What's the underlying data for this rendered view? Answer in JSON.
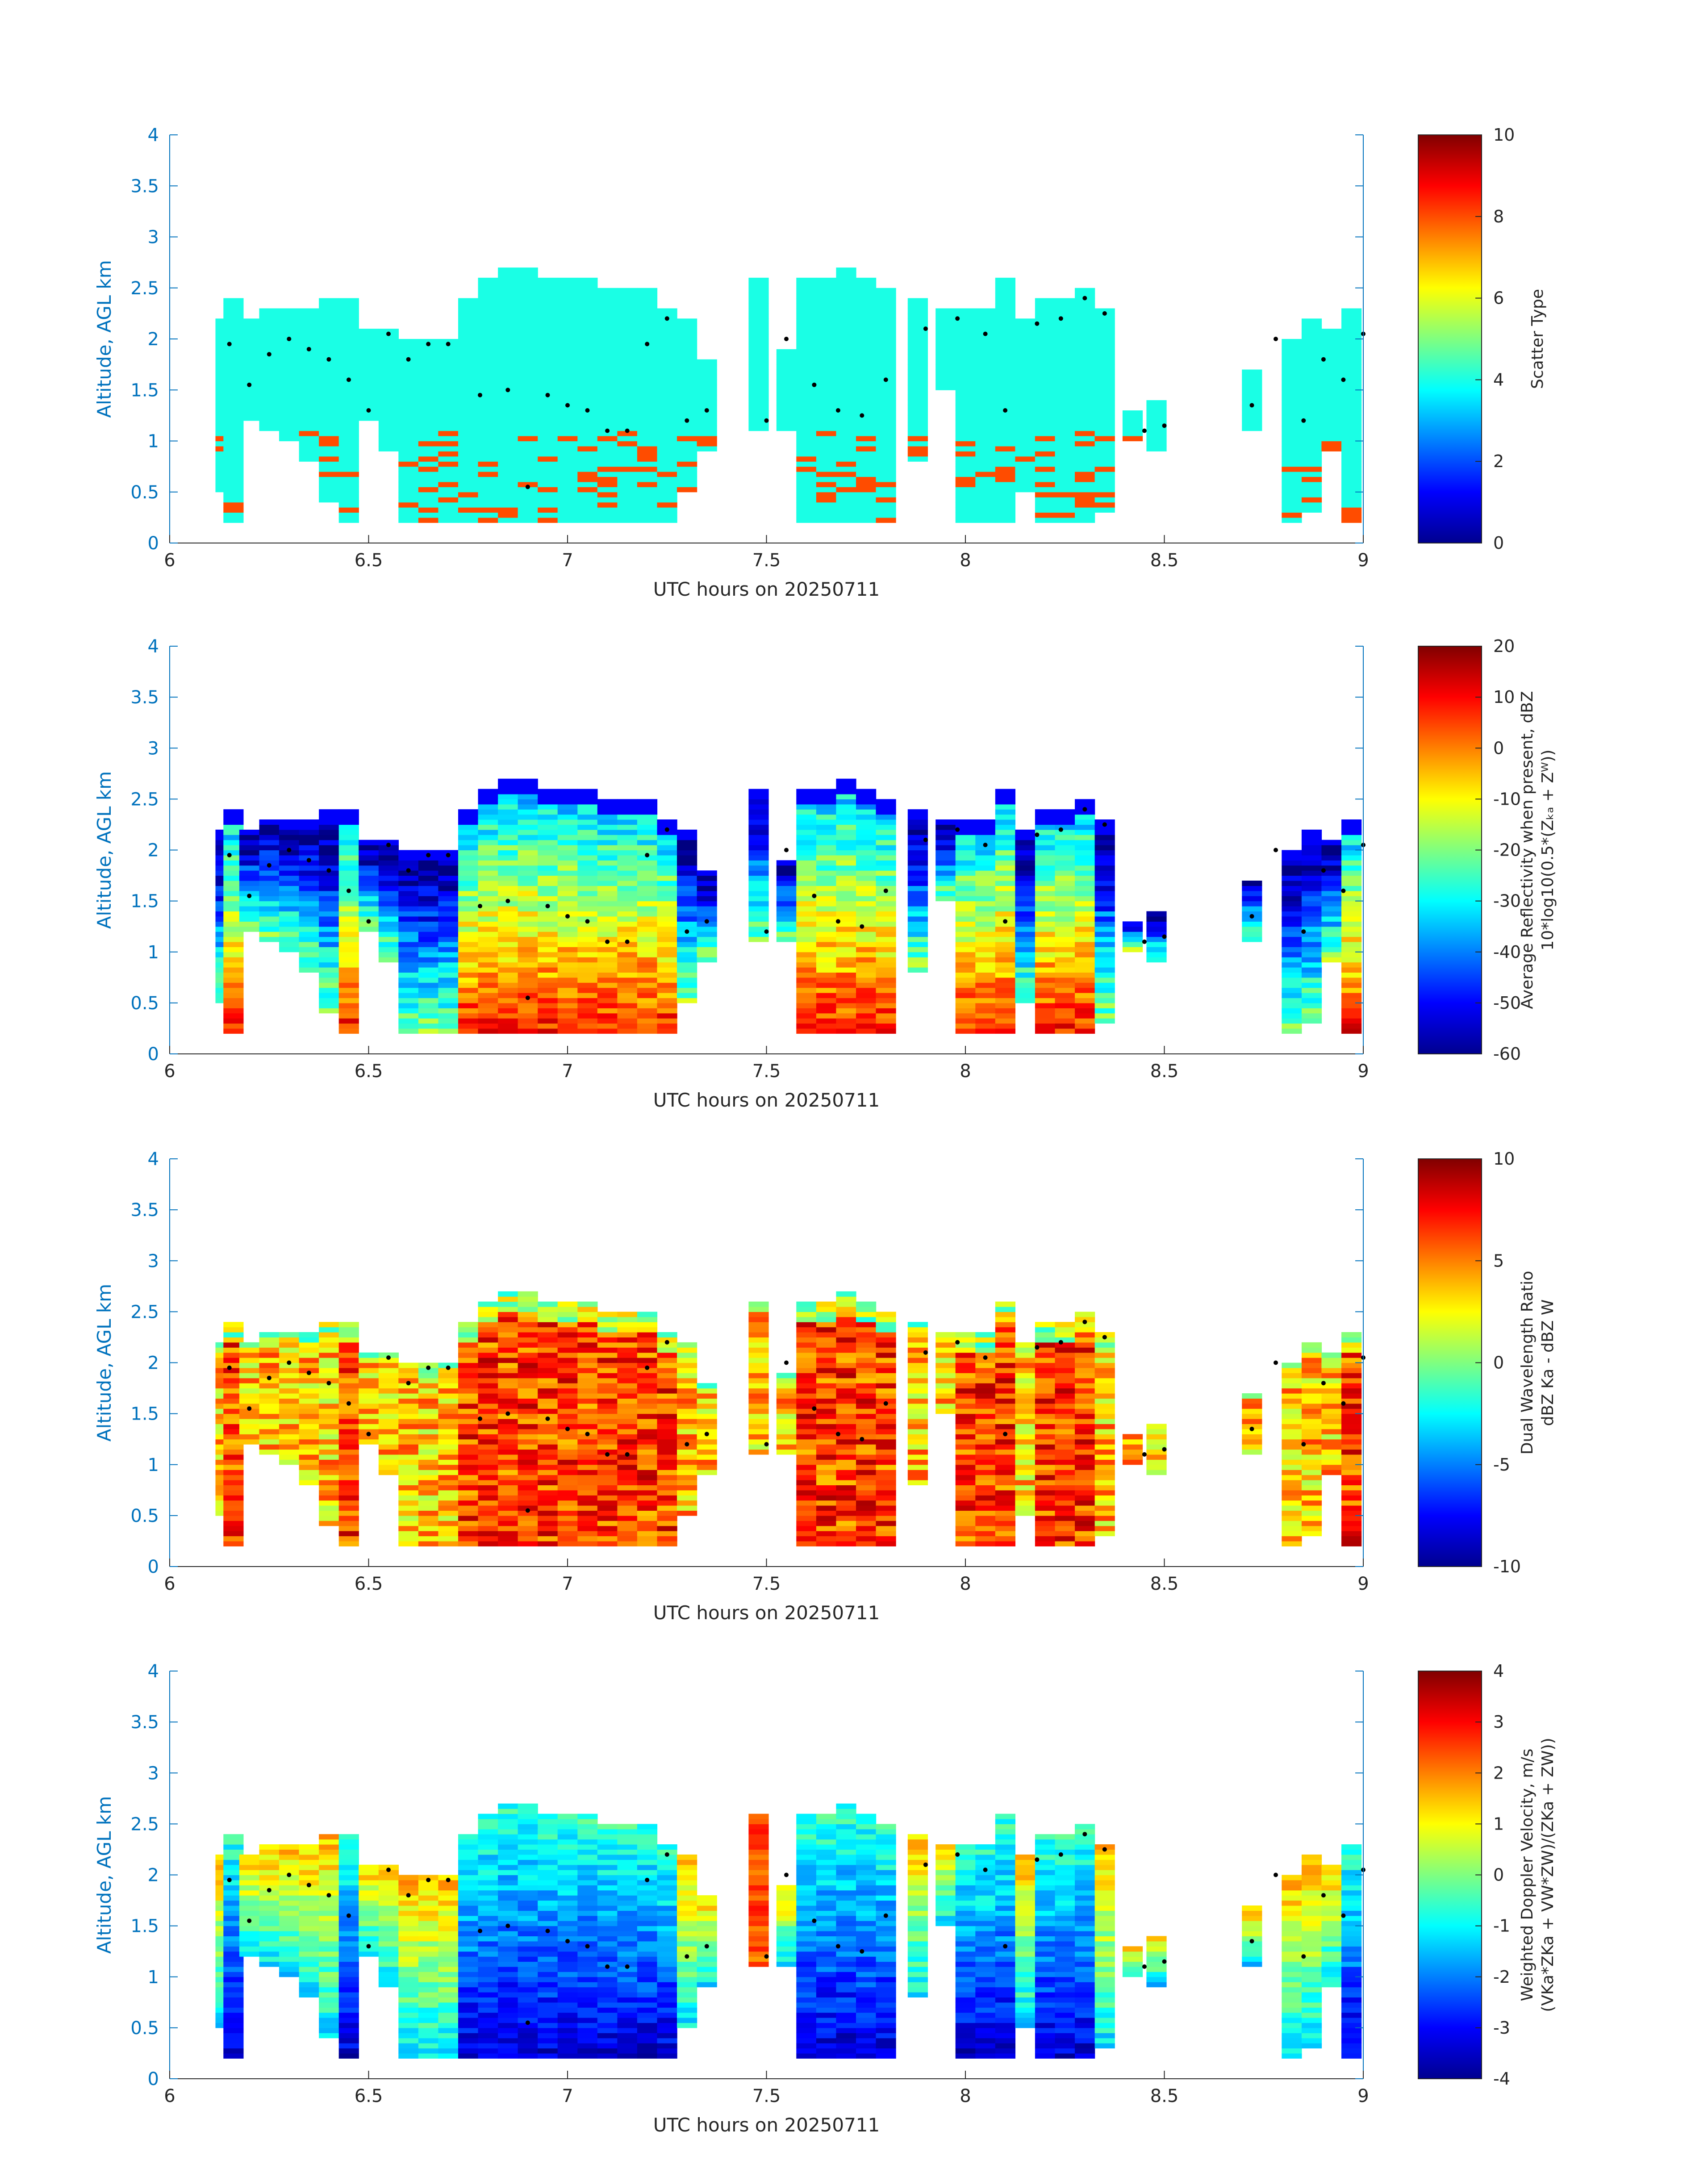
{
  "chart_data": [
    {
      "type": "heatmap",
      "xlabel": "UTC hours on 20250711",
      "ylabel": "Altitude, AGL km",
      "xlim": [
        6,
        9
      ],
      "ylim": [
        0,
        4
      ],
      "xticks": [
        "6",
        "6.5",
        "7",
        "7.5",
        "8",
        "8.5",
        "9"
      ],
      "yticks": [
        "0",
        "0.5",
        "1",
        "1.5",
        "2",
        "2.5",
        "3",
        "3.5",
        "4"
      ],
      "colorbar": {
        "label_lines": [
          "Scatter Type"
        ],
        "range": [
          0,
          10
        ],
        "ticks": [
          "0",
          "2",
          "4",
          "6",
          "8",
          "10"
        ]
      },
      "field": "scatter"
    },
    {
      "type": "heatmap",
      "xlabel": "UTC hours on 20250711",
      "ylabel": "Altitude, AGL km",
      "xlim": [
        6,
        9
      ],
      "ylim": [
        0,
        4
      ],
      "xticks": [
        "6",
        "6.5",
        "7",
        "7.5",
        "8",
        "8.5",
        "9"
      ],
      "yticks": [
        "0",
        "0.5",
        "1",
        "1.5",
        "2",
        "2.5",
        "3",
        "3.5",
        "4"
      ],
      "colorbar": {
        "label_lines": [
          "Average Reflectivity when present, dBZ",
          "10*log10(0.5*(Zₖₐ + Zᵂ))"
        ],
        "range": [
          -60,
          20
        ],
        "ticks": [
          "-60",
          "-50",
          "-40",
          "-30",
          "-20",
          "-10",
          "0",
          "10",
          "20"
        ]
      },
      "field": "reflectivity"
    },
    {
      "type": "heatmap",
      "xlabel": "UTC hours on 20250711",
      "ylabel": "Altitude, AGL km",
      "xlim": [
        6,
        9
      ],
      "ylim": [
        0,
        4
      ],
      "xticks": [
        "6",
        "6.5",
        "7",
        "7.5",
        "8",
        "8.5",
        "9"
      ],
      "yticks": [
        "0",
        "0.5",
        "1",
        "1.5",
        "2",
        "2.5",
        "3",
        "3.5",
        "4"
      ],
      "colorbar": {
        "label_lines": [
          "Dual Wavelength Ratio",
          "dBZ Ka - dBZ W"
        ],
        "range": [
          -10,
          10
        ],
        "ticks": [
          "-10",
          "-5",
          "0",
          "5",
          "10"
        ]
      },
      "field": "dwr"
    },
    {
      "type": "heatmap",
      "xlabel": "UTC hours on 20250711",
      "ylabel": "Altitude, AGL km",
      "xlim": [
        6,
        9
      ],
      "ylim": [
        0,
        4
      ],
      "xticks": [
        "6",
        "6.5",
        "7",
        "7.5",
        "8",
        "8.5",
        "9"
      ],
      "yticks": [
        "0",
        "0.5",
        "1",
        "1.5",
        "2",
        "2.5",
        "3",
        "3.5",
        "4"
      ],
      "colorbar": {
        "label_lines": [
          "Weighted Doppler Velocity, m/s",
          "(VKa*ZKa + VW*ZW)/(ZKa + ZW))"
        ],
        "range": [
          -4,
          4
        ],
        "ticks": [
          "-4",
          "-3",
          "-2",
          "-1",
          "0",
          "1",
          "2",
          "3",
          "4"
        ]
      },
      "field": "velocity"
    }
  ],
  "cloud_columns": [
    {
      "t": 6.14,
      "bottom": 0.5,
      "top": 2.2
    },
    {
      "t": 6.16,
      "bottom": 0.2,
      "top": 2.4
    },
    {
      "t": 6.2,
      "bottom": 1.2,
      "top": 2.2
    },
    {
      "t": 6.25,
      "bottom": 1.1,
      "top": 2.3
    },
    {
      "t": 6.3,
      "bottom": 1.0,
      "top": 2.3
    },
    {
      "t": 6.35,
      "bottom": 0.8,
      "top": 2.3
    },
    {
      "t": 6.4,
      "bottom": 0.4,
      "top": 2.4
    },
    {
      "t": 6.45,
      "bottom": 0.2,
      "top": 2.4
    },
    {
      "t": 6.5,
      "bottom": 1.2,
      "top": 2.1
    },
    {
      "t": 6.55,
      "bottom": 0.9,
      "top": 2.1
    },
    {
      "t": 6.6,
      "bottom": 0.2,
      "top": 2.0
    },
    {
      "t": 6.65,
      "bottom": 0.2,
      "top": 2.0
    },
    {
      "t": 6.7,
      "bottom": 0.2,
      "top": 2.0
    },
    {
      "t": 6.75,
      "bottom": 0.2,
      "top": 2.4
    },
    {
      "t": 6.8,
      "bottom": 0.2,
      "top": 2.6
    },
    {
      "t": 6.85,
      "bottom": 0.2,
      "top": 2.7
    },
    {
      "t": 6.9,
      "bottom": 0.2,
      "top": 2.7
    },
    {
      "t": 6.95,
      "bottom": 0.2,
      "top": 2.6
    },
    {
      "t": 7.0,
      "bottom": 0.2,
      "top": 2.6
    },
    {
      "t": 7.05,
      "bottom": 0.2,
      "top": 2.6
    },
    {
      "t": 7.1,
      "bottom": 0.2,
      "top": 2.5
    },
    {
      "t": 7.15,
      "bottom": 0.2,
      "top": 2.5
    },
    {
      "t": 7.2,
      "bottom": 0.2,
      "top": 2.5
    },
    {
      "t": 7.25,
      "bottom": 0.2,
      "top": 2.3
    },
    {
      "t": 7.3,
      "bottom": 0.5,
      "top": 2.2
    },
    {
      "t": 7.35,
      "bottom": 0.9,
      "top": 1.8
    },
    {
      "t": 7.48,
      "bottom": 1.1,
      "top": 2.6
    },
    {
      "t": 7.55,
      "bottom": 1.1,
      "top": 1.9
    },
    {
      "t": 7.6,
      "bottom": 0.2,
      "top": 2.6
    },
    {
      "t": 7.65,
      "bottom": 0.2,
      "top": 2.6
    },
    {
      "t": 7.7,
      "bottom": 0.2,
      "top": 2.7
    },
    {
      "t": 7.75,
      "bottom": 0.2,
      "top": 2.6
    },
    {
      "t": 7.8,
      "bottom": 0.2,
      "top": 2.5
    },
    {
      "t": 7.88,
      "bottom": 0.8,
      "top": 2.4
    },
    {
      "t": 7.95,
      "bottom": 1.5,
      "top": 2.3
    },
    {
      "t": 8.0,
      "bottom": 0.2,
      "top": 2.3
    },
    {
      "t": 8.05,
      "bottom": 0.2,
      "top": 2.3
    },
    {
      "t": 8.1,
      "bottom": 0.2,
      "top": 2.6
    },
    {
      "t": 8.15,
      "bottom": 0.5,
      "top": 2.2
    },
    {
      "t": 8.2,
      "bottom": 0.2,
      "top": 2.4
    },
    {
      "t": 8.25,
      "bottom": 0.2,
      "top": 2.4
    },
    {
      "t": 8.3,
      "bottom": 0.2,
      "top": 2.5
    },
    {
      "t": 8.35,
      "bottom": 0.3,
      "top": 2.3
    },
    {
      "t": 8.42,
      "bottom": 1.0,
      "top": 1.3
    },
    {
      "t": 8.48,
      "bottom": 0.9,
      "top": 1.4
    },
    {
      "t": 8.72,
      "bottom": 1.1,
      "top": 1.7
    },
    {
      "t": 8.82,
      "bottom": 0.2,
      "top": 2.0
    },
    {
      "t": 8.87,
      "bottom": 0.3,
      "top": 2.2
    },
    {
      "t": 8.92,
      "bottom": 0.9,
      "top": 2.1
    },
    {
      "t": 8.97,
      "bottom": 0.2,
      "top": 2.3
    }
  ],
  "base_dots": [
    {
      "t": 6.15,
      "h": 1.95
    },
    {
      "t": 6.2,
      "h": 1.55
    },
    {
      "t": 6.25,
      "h": 1.85
    },
    {
      "t": 6.3,
      "h": 2.0
    },
    {
      "t": 6.35,
      "h": 1.9
    },
    {
      "t": 6.4,
      "h": 1.8
    },
    {
      "t": 6.45,
      "h": 1.6
    },
    {
      "t": 6.5,
      "h": 1.3
    },
    {
      "t": 6.55,
      "h": 2.05
    },
    {
      "t": 6.6,
      "h": 1.8
    },
    {
      "t": 6.65,
      "h": 1.95
    },
    {
      "t": 6.7,
      "h": 1.95
    },
    {
      "t": 6.78,
      "h": 1.45
    },
    {
      "t": 6.85,
      "h": 1.5
    },
    {
      "t": 6.9,
      "h": 0.55
    },
    {
      "t": 6.95,
      "h": 1.45
    },
    {
      "t": 7.0,
      "h": 1.35
    },
    {
      "t": 7.05,
      "h": 1.3
    },
    {
      "t": 7.1,
      "h": 1.1
    },
    {
      "t": 7.15,
      "h": 1.1
    },
    {
      "t": 7.2,
      "h": 1.95
    },
    {
      "t": 7.25,
      "h": 2.2
    },
    {
      "t": 7.3,
      "h": 1.2
    },
    {
      "t": 7.35,
      "h": 1.3
    },
    {
      "t": 7.5,
      "h": 1.2
    },
    {
      "t": 7.55,
      "h": 2.0
    },
    {
      "t": 7.62,
      "h": 1.55
    },
    {
      "t": 7.68,
      "h": 1.3
    },
    {
      "t": 7.74,
      "h": 1.25
    },
    {
      "t": 7.8,
      "h": 1.6
    },
    {
      "t": 7.9,
      "h": 2.1
    },
    {
      "t": 7.98,
      "h": 2.2
    },
    {
      "t": 8.05,
      "h": 2.05
    },
    {
      "t": 8.1,
      "h": 1.3
    },
    {
      "t": 8.18,
      "h": 2.15
    },
    {
      "t": 8.24,
      "h": 2.2
    },
    {
      "t": 8.3,
      "h": 2.4
    },
    {
      "t": 8.35,
      "h": 2.25
    },
    {
      "t": 8.45,
      "h": 1.1
    },
    {
      "t": 8.5,
      "h": 1.15
    },
    {
      "t": 8.72,
      "h": 1.35
    },
    {
      "t": 8.78,
      "h": 2.0
    },
    {
      "t": 8.85,
      "h": 1.2
    },
    {
      "t": 8.9,
      "h": 1.8
    },
    {
      "t": 8.95,
      "h": 1.6
    },
    {
      "t": 9.0,
      "h": 2.05
    }
  ]
}
